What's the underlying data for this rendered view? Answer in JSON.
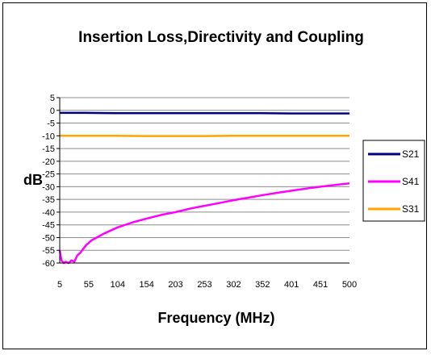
{
  "chart_data": {
    "type": "line",
    "title": "Insertion Loss,Directivity and Coupling",
    "xlabel": "Frequency (MHz)",
    "ylabel": "dB",
    "x_tick_labels": [
      "5",
      "55",
      "104",
      "154",
      "203",
      "253",
      "302",
      "352",
      "401",
      "451",
      "500"
    ],
    "x_range": [
      5,
      500
    ],
    "y_ticks": [
      5,
      0,
      -5,
      -10,
      -15,
      -20,
      -25,
      -30,
      -35,
      -40,
      -45,
      -50,
      -55,
      -60
    ],
    "ylim": [
      -60,
      5
    ],
    "grid": true,
    "legend_position": "right",
    "plot_background": "#ffffff",
    "series": [
      {
        "name": "S21",
        "color": "#000080",
        "x": [
          5,
          50,
          100,
          150,
          200,
          250,
          300,
          350,
          400,
          450,
          500
        ],
        "y": [
          -1.0,
          -1.0,
          -1.1,
          -1.1,
          -1.1,
          -1.1,
          -1.1,
          -1.1,
          -1.2,
          -1.2,
          -1.2
        ]
      },
      {
        "name": "S41",
        "color": "#ff00ff",
        "x": [
          5,
          8,
          12,
          15,
          20,
          25,
          30,
          35,
          40,
          50,
          60,
          80,
          104,
          130,
          154,
          180,
          203,
          230,
          253,
          280,
          302,
          330,
          352,
          380,
          401,
          430,
          451,
          480,
          500
        ],
        "y": [
          -55,
          -59,
          -60,
          -59.5,
          -60,
          -59,
          -59.5,
          -57,
          -56,
          -53,
          -51,
          -48.5,
          -46,
          -44,
          -42.5,
          -41,
          -40,
          -38.5,
          -37.5,
          -36.3,
          -35.3,
          -34.2,
          -33.3,
          -32.3,
          -31.6,
          -30.6,
          -30,
          -29.2,
          -28.7
        ]
      },
      {
        "name": "S31",
        "color": "#ffa500",
        "x": [
          5,
          50,
          100,
          150,
          200,
          250,
          300,
          350,
          400,
          450,
          500
        ],
        "y": [
          -10.0,
          -10.0,
          -10.0,
          -10.1,
          -10.1,
          -10.1,
          -10.0,
          -10.0,
          -10.0,
          -10.0,
          -10.0
        ]
      }
    ]
  }
}
